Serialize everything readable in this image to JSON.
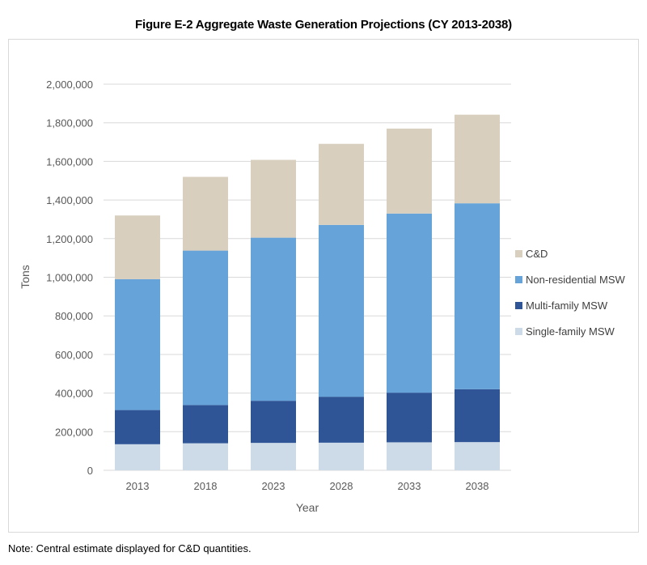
{
  "figure": {
    "title": "Figure E-2  Aggregate Waste Generation Projections (CY 2013-2038)",
    "note": "Note: Central estimate displayed for C&D quantities."
  },
  "chart_data": {
    "type": "bar",
    "stacked": true,
    "title": "Figure E-2  Aggregate Waste Generation Projections (CY 2013-2038)",
    "xlabel": "Year",
    "ylabel": "Tons",
    "ylim": [
      0,
      2000000
    ],
    "ytick_step": 200000,
    "yticks": [
      "0",
      "200,000",
      "400,000",
      "600,000",
      "800,000",
      "1,000,000",
      "1,200,000",
      "1,400,000",
      "1,600,000",
      "1,800,000",
      "2,000,000"
    ],
    "grid": true,
    "legend_position": "right",
    "categories": [
      "2013",
      "2018",
      "2023",
      "2028",
      "2033",
      "2038"
    ],
    "series": [
      {
        "name": "Single-family MSW",
        "color": "#cddbe8",
        "values": [
          135000,
          140000,
          142000,
          143000,
          145000,
          146000
        ]
      },
      {
        "name": "Multi-family MSW",
        "color": "#2f5597",
        "values": [
          177000,
          198000,
          218000,
          238000,
          257000,
          274000
        ]
      },
      {
        "name": "Non-residential MSW",
        "color": "#66a3d8",
        "values": [
          678000,
          800000,
          845000,
          890000,
          928000,
          963000
        ]
      },
      {
        "name": "C&D",
        "color": "#d9cfbe",
        "values": [
          330000,
          382000,
          403000,
          420000,
          440000,
          459000
        ]
      }
    ],
    "legend_order": [
      "C&D",
      "Non-residential MSW",
      "Multi-family MSW",
      "Single-family MSW"
    ]
  },
  "colors": {
    "grid": "#d9d9d9",
    "axis_text": "#595959",
    "frame": "#d9d9d9"
  }
}
